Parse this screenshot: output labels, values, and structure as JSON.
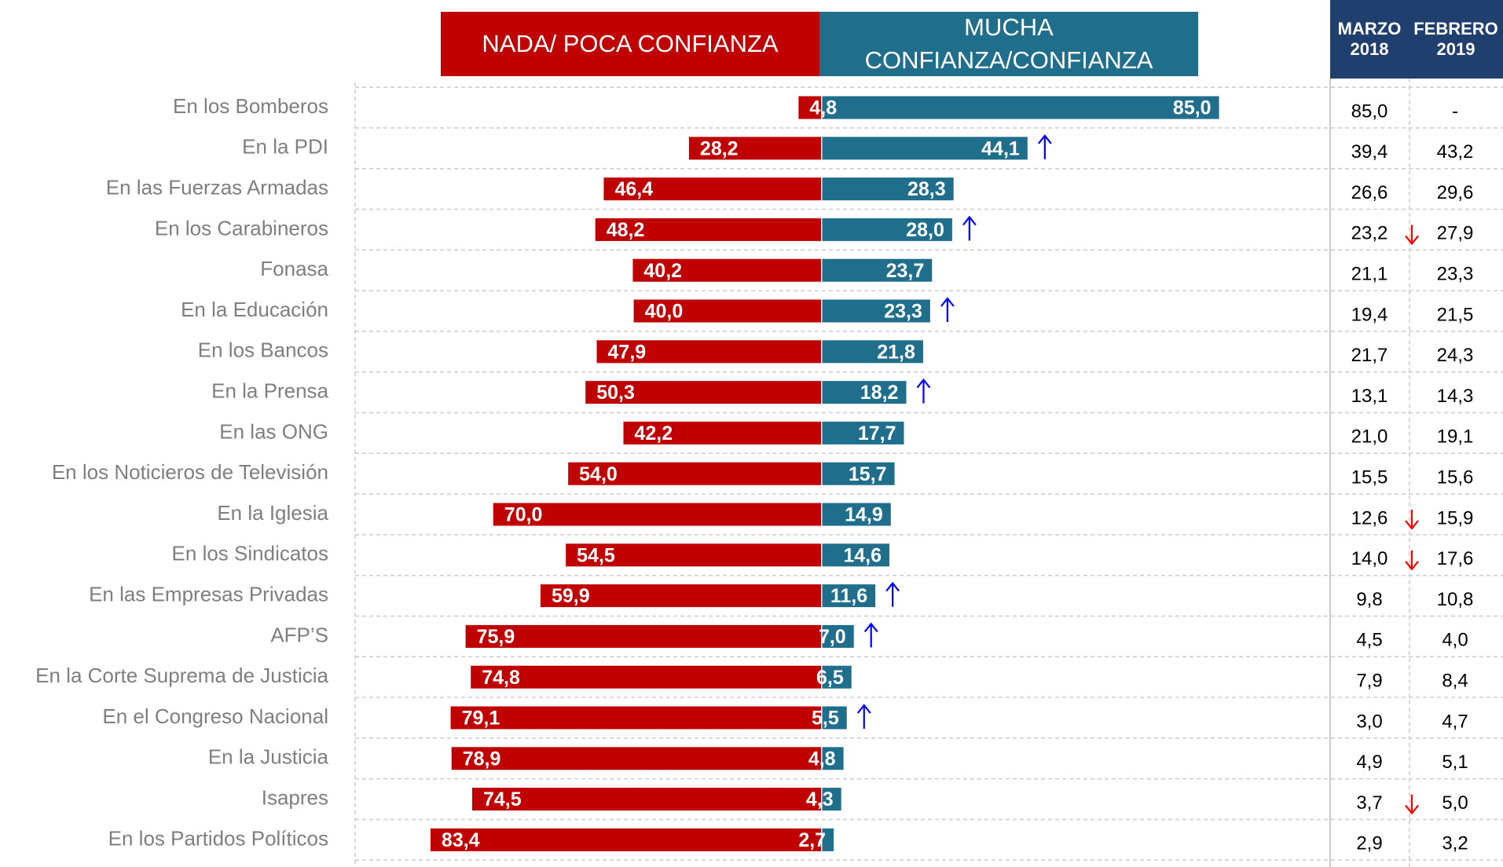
{
  "chart_data": {
    "type": "diverging_bar",
    "categories": [
      "En los Bomberos",
      "En la PDI",
      "En las Fuerzas Armadas",
      "En los Carabineros",
      "Fonasa",
      "En la Educación",
      "En los Bancos",
      "En la Prensa",
      "En las ONG",
      "En los Noticieros de Televisión",
      "En la Iglesia",
      "En los Sindicatos",
      "En las Empresas Privadas",
      "AFP’S",
      "En la Corte Suprema de Justicia",
      "En el Congreso Nacional",
      "En la Justicia",
      "Isapres",
      "En los Partidos Políticos"
    ],
    "series": [
      {
        "name": "NADA/ POCA CONFIANZA",
        "color": "#c00000",
        "values": [
          4.8,
          28.2,
          46.4,
          48.2,
          40.2,
          40.0,
          47.9,
          50.3,
          42.2,
          54.0,
          70.0,
          54.5,
          59.9,
          75.9,
          74.8,
          79.1,
          78.9,
          74.5,
          83.4
        ],
        "value_labels": [
          "4,8",
          "28,2",
          "46,4",
          "48,2",
          "40,2",
          "40,0",
          "47,9",
          "50,3",
          "42,2",
          "54,0",
          "70,0",
          "54,5",
          "59,9",
          "75,9",
          "74,8",
          "79,1",
          "78,9",
          "74,5",
          "83,4"
        ]
      },
      {
        "name": "MUCHA CONFIANZA/CONFIANZA",
        "color": "#1f6e8c",
        "values": [
          85.0,
          44.1,
          28.3,
          28.0,
          23.7,
          23.3,
          21.8,
          18.2,
          17.7,
          15.7,
          14.9,
          14.6,
          11.6,
          7.0,
          6.5,
          5.5,
          4.8,
          4.3,
          2.7
        ],
        "value_labels": [
          "85,0",
          "44,1",
          "28,3",
          "28,0",
          "23,7",
          "23,3",
          "21,8",
          "18,2",
          "17,7",
          "15,7",
          "14,9",
          "14,6",
          "11,6",
          "7,0",
          "6,5",
          "5,5",
          "4,8",
          "4,3",
          "2,7"
        ]
      }
    ],
    "up_arrows": [
      1,
      3,
      5,
      7,
      12,
      13,
      15
    ],
    "table": {
      "header_color": "#1f3f6e",
      "down_arrows": [
        3,
        10,
        11,
        17
      ],
      "columns": [
        {
          "name": "MARZO 2018",
          "values": [
            85.0,
            39.4,
            26.6,
            23.2,
            21.1,
            19.4,
            21.7,
            13.1,
            21.0,
            15.5,
            12.6,
            14.0,
            9.8,
            4.5,
            7.9,
            3.0,
            4.9,
            3.7,
            2.9
          ],
          "value_labels": [
            "85,0",
            "39,4",
            "26,6",
            "23,2",
            "21,1",
            "19,4",
            "21,7",
            "13,1",
            "21,0",
            "15,5",
            "12,6",
            "14,0",
            "9,8",
            "4,5",
            "7,9",
            "3,0",
            "4,9",
            "3,7",
            "2,9"
          ]
        },
        {
          "name": "FEBRERO 2019",
          "values": [
            null,
            43.2,
            29.6,
            27.9,
            23.3,
            21.5,
            24.3,
            14.3,
            19.1,
            15.6,
            15.9,
            17.6,
            10.8,
            4.0,
            8.4,
            4.7,
            5.1,
            5.0,
            3.2
          ],
          "value_labels": [
            "-",
            "43,2",
            "29,6",
            "27,9",
            "23,3",
            "21,5",
            "24,3",
            "14,3",
            "19,1",
            "15,6",
            "15,9",
            "17,6",
            "10,8",
            "4,0",
            "8,4",
            "4,7",
            "5,1",
            "5,0",
            "3,2"
          ]
        }
      ]
    }
  }
}
